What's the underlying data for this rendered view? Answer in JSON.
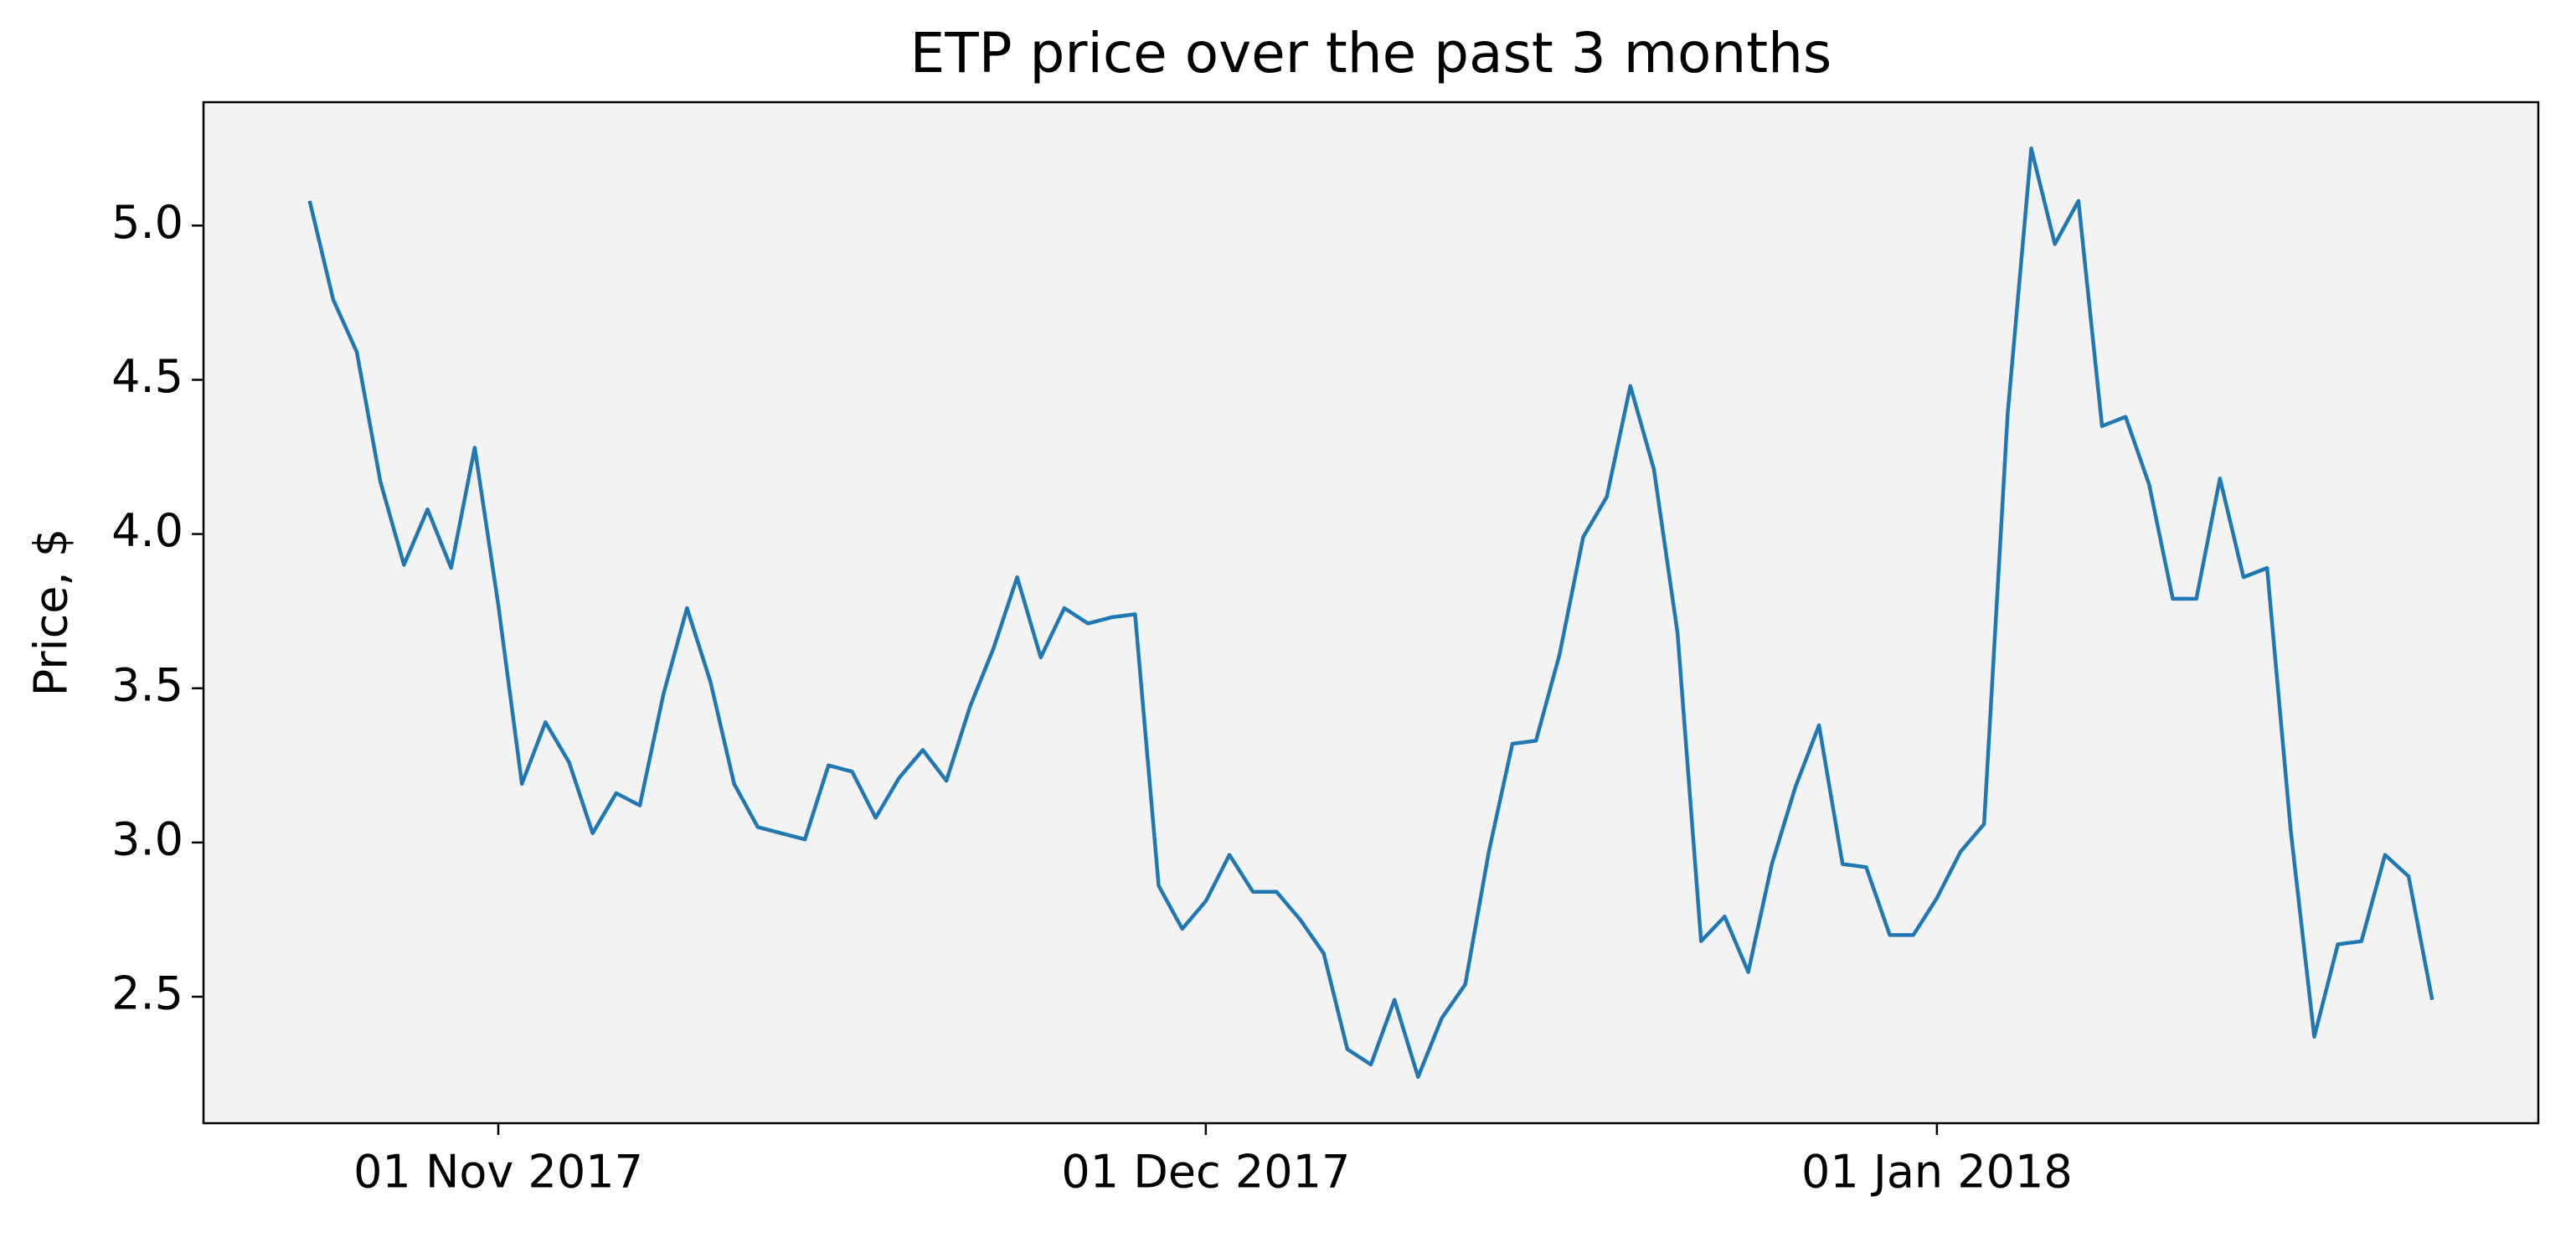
{
  "chart_data": {
    "type": "line",
    "title": "ETP price over the past 3 months",
    "ylabel": "Price, $",
    "x": [
      "2017-10-24",
      "2017-10-25",
      "2017-10-26",
      "2017-10-27",
      "2017-10-28",
      "2017-10-29",
      "2017-10-30",
      "2017-10-31",
      "2017-11-01",
      "2017-11-02",
      "2017-11-03",
      "2017-11-04",
      "2017-11-05",
      "2017-11-06",
      "2017-11-07",
      "2017-11-08",
      "2017-11-09",
      "2017-11-10",
      "2017-11-11",
      "2017-11-12",
      "2017-11-13",
      "2017-11-14",
      "2017-11-15",
      "2017-11-16",
      "2017-11-17",
      "2017-11-18",
      "2017-11-19",
      "2017-11-20",
      "2017-11-21",
      "2017-11-22",
      "2017-11-23",
      "2017-11-24",
      "2017-11-25",
      "2017-11-26",
      "2017-11-27",
      "2017-11-28",
      "2017-11-29",
      "2017-11-30",
      "2017-12-01",
      "2017-12-02",
      "2017-12-03",
      "2017-12-04",
      "2017-12-05",
      "2017-12-06",
      "2017-12-07",
      "2017-12-08",
      "2017-12-09",
      "2017-12-10",
      "2017-12-11",
      "2017-12-12",
      "2017-12-13",
      "2017-12-14",
      "2017-12-15",
      "2017-12-16",
      "2017-12-17",
      "2017-12-18",
      "2017-12-19",
      "2017-12-20",
      "2017-12-21",
      "2017-12-22",
      "2017-12-23",
      "2017-12-24",
      "2017-12-25",
      "2017-12-26",
      "2017-12-27",
      "2017-12-28",
      "2017-12-29",
      "2017-12-30",
      "2017-12-31",
      "2018-01-01",
      "2018-01-02",
      "2018-01-03",
      "2018-01-04",
      "2018-01-05",
      "2018-01-06",
      "2018-01-07",
      "2018-01-08",
      "2018-01-09",
      "2018-01-10",
      "2018-01-11",
      "2018-01-12",
      "2018-01-13",
      "2018-01-14",
      "2018-01-15",
      "2018-01-16",
      "2018-01-17",
      "2018-01-18",
      "2018-01-19",
      "2018-01-20",
      "2018-01-21",
      "2018-01-22"
    ],
    "series": [
      {
        "color": "#1f77b4",
        "values": [
          5.08,
          4.76,
          4.59,
          4.17,
          3.9,
          4.08,
          3.89,
          4.28,
          3.77,
          3.19,
          3.39,
          3.26,
          3.03,
          3.16,
          3.12,
          3.48,
          3.76,
          3.52,
          3.19,
          3.05,
          3.03,
          3.01,
          3.25,
          3.23,
          3.08,
          3.21,
          3.3,
          3.2,
          3.44,
          3.63,
          3.86,
          3.6,
          3.76,
          3.71,
          3.73,
          3.74,
          2.86,
          2.72,
          2.81,
          2.96,
          2.84,
          2.84,
          2.75,
          2.64,
          2.33,
          2.28,
          2.49,
          2.24,
          2.43,
          2.54,
          2.97,
          3.32,
          3.33,
          3.61,
          3.99,
          4.12,
          4.48,
          4.21,
          3.68,
          2.68,
          2.76,
          2.58,
          2.93,
          3.18,
          3.38,
          2.93,
          2.92,
          2.7,
          2.7,
          2.82,
          2.97,
          3.06,
          4.39,
          5.25,
          4.94,
          5.08,
          4.35,
          4.38,
          4.16,
          3.79,
          3.79,
          4.18,
          3.86,
          3.89,
          3.04,
          2.37,
          2.67,
          2.68,
          2.96,
          2.89,
          2.49
        ]
      }
    ],
    "xlim": [
      "2017-10-19T12:00",
      "2018-01-26T12:00"
    ],
    "xticks": [
      {
        "value": "2017-11-01",
        "label": "01 Nov 2017"
      },
      {
        "value": "2017-12-01",
        "label": "01 Dec 2017"
      },
      {
        "value": "2018-01-01",
        "label": "01 Jan 2018"
      }
    ],
    "ylim": [
      2.09,
      5.4
    ],
    "yticks": [
      2.5,
      {
        "value": 3,
        "label": "3.0"
      },
      3.5,
      {
        "value": 4,
        "label": "4.0"
      },
      4.5,
      {
        "value": 5,
        "label": "5.0"
      }
    ],
    "background": "#f3f3f3"
  }
}
